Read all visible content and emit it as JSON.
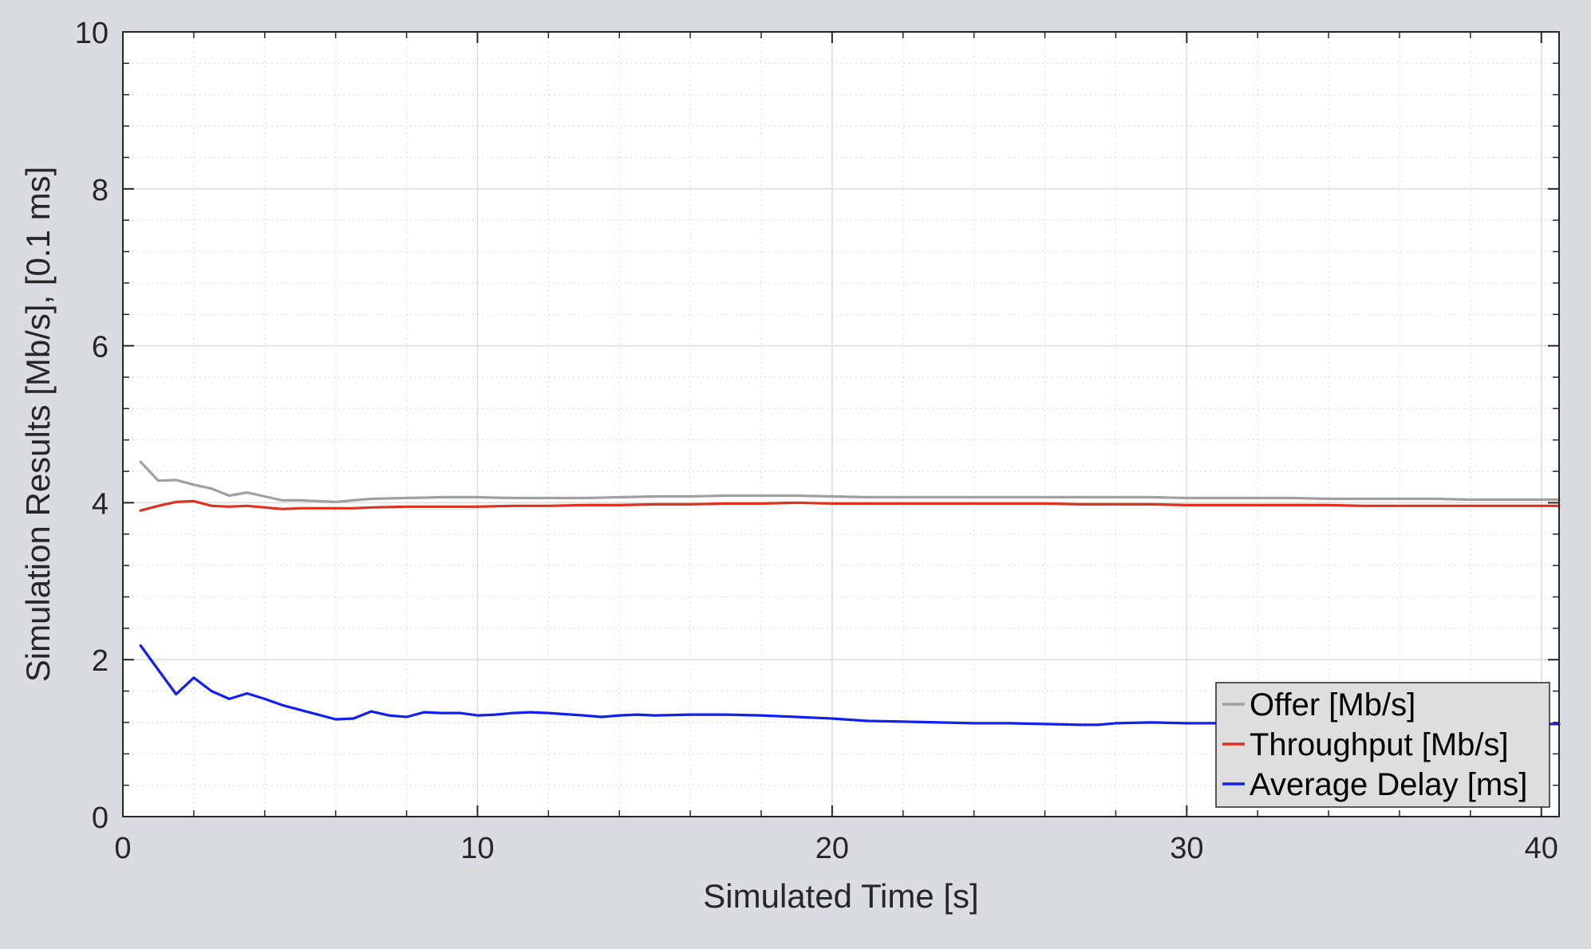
{
  "chart_data": {
    "type": "line",
    "title": "",
    "xlabel": "Simulated Time [s]",
    "ylabel": "Simulation Results [Mb/s], [0.1 ms]",
    "xlim": [
      0,
      40.5
    ],
    "ylim": [
      0,
      10
    ],
    "xticks": [
      0,
      10,
      20,
      30,
      40
    ],
    "yticks": [
      0,
      2,
      4,
      6,
      8,
      10
    ],
    "xtick_labels": [
      "0",
      "10",
      "20",
      "30",
      "40"
    ],
    "ytick_labels": [
      "0",
      "2",
      "4",
      "6",
      "8",
      "10"
    ],
    "grid": true,
    "minor_grid": true,
    "legend_position": "bottom-right",
    "series": [
      {
        "name": "Offer [Mb/s]",
        "color": "#a0a0a0",
        "x": [
          0.5,
          1,
          1.5,
          2,
          2.5,
          3,
          3.5,
          4,
          4.5,
          5,
          5.5,
          6,
          6.5,
          7,
          8,
          9,
          10,
          11,
          12,
          13,
          14,
          15,
          16,
          17,
          18,
          19,
          20,
          21,
          22,
          23,
          24,
          25,
          26,
          27,
          28,
          29,
          30,
          31,
          32,
          33,
          34,
          35,
          36,
          37,
          38,
          39,
          40,
          40.5
        ],
        "y": [
          4.52,
          4.28,
          4.29,
          4.23,
          4.18,
          4.09,
          4.13,
          4.08,
          4.03,
          4.03,
          4.02,
          4.01,
          4.03,
          4.05,
          4.06,
          4.07,
          4.07,
          4.06,
          4.06,
          4.06,
          4.07,
          4.08,
          4.08,
          4.09,
          4.09,
          4.09,
          4.08,
          4.07,
          4.07,
          4.07,
          4.07,
          4.07,
          4.07,
          4.07,
          4.07,
          4.07,
          4.06,
          4.06,
          4.06,
          4.06,
          4.05,
          4.05,
          4.05,
          4.05,
          4.04,
          4.04,
          4.04,
          4.04
        ]
      },
      {
        "name": "Throughput [Mb/s]",
        "color": "#e03020",
        "x": [
          0.5,
          1,
          1.5,
          2,
          2.5,
          3,
          3.5,
          4,
          4.5,
          5,
          5.5,
          6,
          6.5,
          7,
          8,
          9,
          10,
          11,
          12,
          13,
          14,
          15,
          16,
          17,
          18,
          19,
          20,
          21,
          22,
          23,
          24,
          25,
          26,
          27,
          28,
          29,
          30,
          31,
          32,
          33,
          34,
          35,
          36,
          37,
          38,
          39,
          40,
          40.5
        ],
        "y": [
          3.9,
          3.96,
          4.01,
          4.02,
          3.96,
          3.95,
          3.96,
          3.94,
          3.92,
          3.93,
          3.93,
          3.93,
          3.93,
          3.94,
          3.95,
          3.95,
          3.95,
          3.96,
          3.96,
          3.97,
          3.97,
          3.98,
          3.98,
          3.99,
          3.99,
          4.0,
          3.99,
          3.99,
          3.99,
          3.99,
          3.99,
          3.99,
          3.99,
          3.98,
          3.98,
          3.98,
          3.97,
          3.97,
          3.97,
          3.97,
          3.97,
          3.96,
          3.96,
          3.96,
          3.96,
          3.96,
          3.96,
          3.96
        ]
      },
      {
        "name": "Average Delay [ms]",
        "color": "#1020f0",
        "x": [
          0.5,
          1,
          1.5,
          2,
          2.5,
          3,
          3.5,
          4,
          4.5,
          5,
          5.5,
          6,
          6.5,
          7,
          7.5,
          8,
          8.5,
          9,
          9.5,
          10,
          10.5,
          11,
          11.5,
          12,
          13,
          13.5,
          14,
          14.5,
          15,
          16,
          17,
          18,
          19,
          20,
          21,
          22,
          23,
          24,
          25,
          26,
          27,
          27.5,
          28,
          29,
          30,
          31,
          32,
          33,
          34,
          35,
          36,
          37,
          38,
          39,
          40,
          40.5
        ],
        "y": [
          2.18,
          1.87,
          1.56,
          1.77,
          1.6,
          1.5,
          1.57,
          1.5,
          1.42,
          1.36,
          1.3,
          1.24,
          1.25,
          1.34,
          1.29,
          1.27,
          1.33,
          1.32,
          1.32,
          1.29,
          1.3,
          1.32,
          1.33,
          1.32,
          1.29,
          1.27,
          1.29,
          1.3,
          1.29,
          1.3,
          1.3,
          1.29,
          1.27,
          1.25,
          1.22,
          1.21,
          1.2,
          1.19,
          1.19,
          1.18,
          1.17,
          1.17,
          1.19,
          1.2,
          1.19,
          1.19,
          1.19,
          1.18,
          1.18,
          1.18,
          1.18,
          1.18,
          1.18,
          1.18,
          1.18,
          1.18
        ]
      }
    ]
  }
}
